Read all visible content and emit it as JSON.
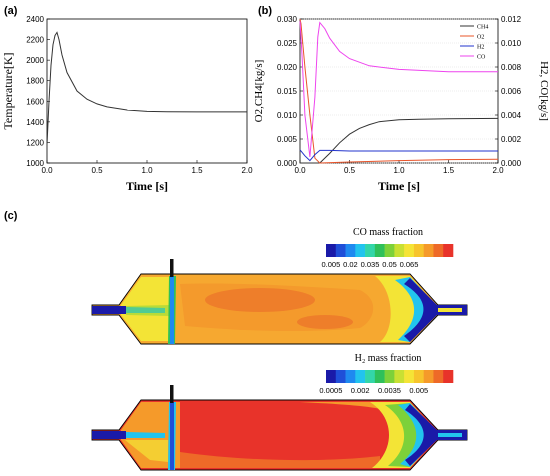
{
  "panels": {
    "a": {
      "label": "(a)"
    },
    "b": {
      "label": "(b)"
    },
    "c": {
      "label": "(c)"
    }
  },
  "colors": {
    "temperature": "#333333",
    "ch4": "#333333",
    "o2": "#e8542a",
    "h2": "#2233cc",
    "co": "#ee44ee"
  },
  "contours": {
    "co_title": "CO mass fraction",
    "h2_title": "H₂ mass fraction",
    "co_scale": {
      "colors": [
        "#1a1aa8",
        "#1f4fd8",
        "#1f8af0",
        "#22c4ee",
        "#33d6a8",
        "#2fc05a",
        "#7dd13a",
        "#c9e033",
        "#f5e436",
        "#f7c42c",
        "#f59a2a",
        "#ee6a28",
        "#e8332a"
      ],
      "tick_labels": [
        "0.005",
        "0.02",
        "0.035",
        "0.05",
        "0.065"
      ]
    },
    "h2_scale": {
      "colors": [
        "#1a1aa8",
        "#1f4fd8",
        "#1f8af0",
        "#22c4ee",
        "#33d6a8",
        "#2fc05a",
        "#7dd13a",
        "#c9e033",
        "#f5e436",
        "#f7c42c",
        "#f59a2a",
        "#ee6a28",
        "#e8332a"
      ],
      "tick_labels": [
        "0.0005",
        "0.002",
        "0.0035",
        "0.005"
      ]
    }
  },
  "chart_data": [
    {
      "type": "line",
      "panel": "(a)",
      "xlabel": "Time [s]",
      "ylabel": "Temperature[K]",
      "xlim": [
        0,
        2.0
      ],
      "ylim": [
        1000,
        2400
      ],
      "x_ticks": [
        "0.0",
        "0.5",
        "1.0",
        "1.5",
        "2.0"
      ],
      "y_ticks": [
        "1000",
        "1200",
        "1400",
        "1600",
        "1800",
        "2000",
        "2200",
        "2400"
      ],
      "series": [
        {
          "x": [
            0,
            0.02,
            0.04,
            0.06,
            0.08,
            0.1,
            0.12,
            0.15,
            0.2,
            0.3,
            0.4,
            0.5,
            0.6,
            0.8,
            1.0,
            1.2,
            1.5,
            2.0
          ],
          "y": [
            1180,
            1600,
            1950,
            2150,
            2240,
            2270,
            2200,
            2050,
            1880,
            1700,
            1620,
            1575,
            1545,
            1515,
            1502,
            1498,
            1497,
            1497
          ]
        }
      ]
    },
    {
      "type": "line",
      "panel": "(b)",
      "xlabel": "Time [s]",
      "ylabel": "O2,CH4[kg/s]",
      "ylabel_right": "H2, CO[kg/s]",
      "xlim": [
        0,
        2.0
      ],
      "ylim": [
        0,
        0.03
      ],
      "ylim_right": [
        0,
        0.012
      ],
      "x_ticks": [
        "0.0",
        "0.5",
        "1.0",
        "1.5",
        "2.0"
      ],
      "y_ticks": [
        "0.000",
        "0.005",
        "0.010",
        "0.015",
        "0.020",
        "0.025",
        "0.030"
      ],
      "y_ticks_right": [
        "0.000",
        "0.002",
        "0.004",
        "0.006",
        "0.008",
        "0.010",
        "0.012"
      ],
      "legend": {
        "position": "top-right"
      },
      "series": [
        {
          "name": "CH4",
          "axis": "left",
          "x": [
            0,
            0.2,
            0.3,
            0.4,
            0.5,
            0.6,
            0.7,
            0.8,
            1.0,
            1.2,
            1.5,
            2.0
          ],
          "y": [
            0,
            0,
            0.002,
            0.0042,
            0.006,
            0.0072,
            0.008,
            0.0086,
            0.009,
            0.0091,
            0.0092,
            0.0093
          ]
        },
        {
          "name": "O2",
          "axis": "left",
          "x": [
            0,
            0.01,
            0.05,
            0.1,
            0.15,
            0.2,
            0.5,
            1.0,
            1.5,
            2.0
          ],
          "y": [
            0.03,
            0.029,
            0.02,
            0.01,
            0.001,
            0.0,
            0.0002,
            0.0005,
            0.0007,
            0.0008
          ]
        },
        {
          "name": "H2",
          "axis": "right",
          "x": [
            0,
            0.05,
            0.1,
            0.15,
            0.2,
            0.3,
            0.5,
            1.0,
            1.5,
            2.0
          ],
          "y": [
            0.0011,
            0.0006,
            0.0002,
            0.0007,
            0.00105,
            0.00105,
            0.001,
            0.001,
            0.001,
            0.001
          ]
        },
        {
          "name": "CO",
          "axis": "right",
          "x": [
            0,
            0.02,
            0.05,
            0.1,
            0.15,
            0.18,
            0.2,
            0.25,
            0.3,
            0.4,
            0.5,
            0.7,
            1.0,
            1.5,
            2.0
          ],
          "y": [
            0.0118,
            0.009,
            0.004,
            0.0005,
            0.0055,
            0.0105,
            0.0117,
            0.0112,
            0.0104,
            0.0093,
            0.0087,
            0.0081,
            0.0078,
            0.0076,
            0.0076
          ]
        }
      ]
    }
  ]
}
